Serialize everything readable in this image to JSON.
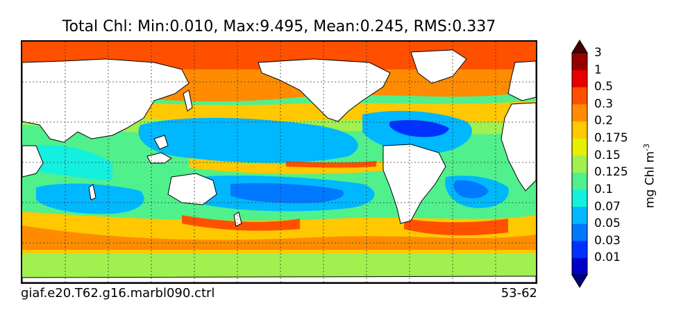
{
  "title": "Total Chl: Min:0.010, Max:9.495, Mean:0.245, RMS:0.337",
  "case_name": "giaf.e20.T62.g16.marbl090.ctrl",
  "years": "53-62",
  "colorbar": {
    "unit_text": "mg Chl m",
    "unit_exponent": "-3",
    "levels": [
      "0.01",
      "0.03",
      "0.05",
      "0.07",
      "0.1",
      "0.125",
      "0.15",
      "0.175",
      "0.2",
      "0.3",
      "0.5",
      "1",
      "3"
    ],
    "colors": [
      "#00007a",
      "#0000c8",
      "#0032ff",
      "#0078ff",
      "#00b8ff",
      "#14f0e0",
      "#50f08c",
      "#a0f050",
      "#e6f000",
      "#ffc800",
      "#ff8c00",
      "#ff5000",
      "#e60000",
      "#960000",
      "#4a0000"
    ]
  },
  "map_colors": {
    "land": "#ffffff",
    "oligotrophic_core": "#0032ff",
    "gyre": "#00b8ff",
    "subtropical": "#14f0e0",
    "transition": "#50f08c",
    "mid_latitude": "#ffc800",
    "high_latitude": "#ff5000",
    "very_high": "#b40000",
    "southern_ocean": "#ff8c00",
    "equatorial_band": "#e6f000"
  }
}
